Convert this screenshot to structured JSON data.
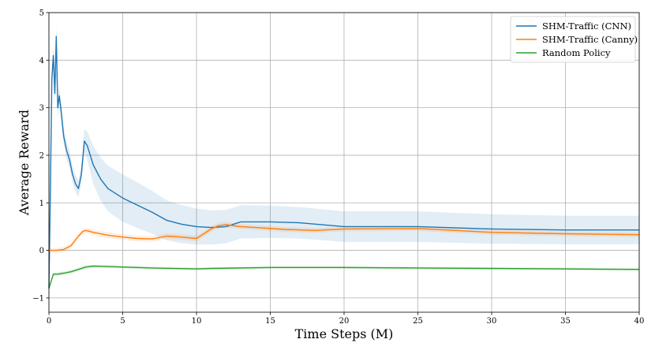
{
  "chart_data": {
    "type": "line",
    "xlabel": "Time Steps (M)",
    "ylabel": "Average Reward",
    "xlim": [
      0,
      40
    ],
    "ylim": [
      -1.3,
      5
    ],
    "xticks": [
      0,
      5,
      10,
      15,
      20,
      25,
      30,
      35,
      40
    ],
    "yticks": [
      -1,
      0,
      1,
      2,
      3,
      4,
      5
    ],
    "grid": true,
    "legend_position": "top-right",
    "series": [
      {
        "name": "SHM-Traffic (CNN)",
        "color": "#1f77b4",
        "x": [
          0,
          0.1,
          0.2,
          0.3,
          0.4,
          0.5,
          0.6,
          0.7,
          0.8,
          1.0,
          1.2,
          1.4,
          1.6,
          1.8,
          2.0,
          2.2,
          2.4,
          2.6,
          2.8,
          3.0,
          3.5,
          4.0,
          5.0,
          6.0,
          7.0,
          8.0,
          9.0,
          10.0,
          11.0,
          12.0,
          13.0,
          15.0,
          17.0,
          20.0,
          25.0,
          30.0,
          35.0,
          40.0
        ],
        "y": [
          -0.8,
          1.3,
          3.6,
          4.1,
          3.3,
          4.5,
          3.0,
          3.25,
          3.0,
          2.4,
          2.1,
          1.9,
          1.6,
          1.4,
          1.3,
          1.6,
          2.3,
          2.2,
          2.0,
          1.8,
          1.5,
          1.3,
          1.1,
          0.95,
          0.8,
          0.63,
          0.55,
          0.5,
          0.48,
          0.5,
          0.6,
          0.6,
          0.58,
          0.5,
          0.5,
          0.45,
          0.43,
          0.43
        ],
        "band": [
          0.05,
          0.2,
          0.25,
          0.25,
          0.25,
          0.25,
          0.2,
          0.2,
          0.2,
          0.18,
          0.18,
          0.18,
          0.18,
          0.18,
          0.18,
          0.2,
          0.25,
          0.3,
          0.35,
          0.4,
          0.45,
          0.48,
          0.5,
          0.48,
          0.45,
          0.42,
          0.4,
          0.38,
          0.36,
          0.35,
          0.35,
          0.34,
          0.33,
          0.32,
          0.32,
          0.31,
          0.3,
          0.3
        ]
      },
      {
        "name": "SHM-Traffic (Canny)",
        "color": "#ff7f0e",
        "x": [
          0,
          0.5,
          1.0,
          1.5,
          2.0,
          2.3,
          2.5,
          3.0,
          4.0,
          5.0,
          6.0,
          7.0,
          8.0,
          9.0,
          10.0,
          11.0,
          11.5,
          12.0,
          13.0,
          14.0,
          16.0,
          18.0,
          20.0,
          25.0,
          30.0,
          35.0,
          40.0
        ],
        "y": [
          0.0,
          0.0,
          0.02,
          0.1,
          0.3,
          0.4,
          0.42,
          0.38,
          0.32,
          0.28,
          0.25,
          0.24,
          0.3,
          0.28,
          0.25,
          0.45,
          0.52,
          0.54,
          0.5,
          0.48,
          0.44,
          0.42,
          0.45,
          0.46,
          0.38,
          0.35,
          0.33
        ],
        "band": [
          0.05,
          0.05,
          0.05,
          0.05,
          0.06,
          0.06,
          0.06,
          0.06,
          0.06,
          0.06,
          0.06,
          0.06,
          0.06,
          0.06,
          0.06,
          0.06,
          0.06,
          0.06,
          0.05,
          0.05,
          0.05,
          0.05,
          0.05,
          0.05,
          0.05,
          0.05,
          0.05
        ]
      },
      {
        "name": "Random Policy",
        "color": "#2ca02c",
        "x": [
          0,
          0.3,
          0.6,
          1.0,
          1.5,
          2.0,
          2.5,
          3.0,
          4.0,
          5.0,
          7.0,
          10.0,
          11.0,
          15.0,
          20.0,
          25.0,
          30.0,
          35.0,
          40.0
        ],
        "y": [
          -0.8,
          -0.5,
          -0.5,
          -0.48,
          -0.45,
          -0.4,
          -0.35,
          -0.33,
          -0.34,
          -0.35,
          -0.37,
          -0.39,
          -0.38,
          -0.36,
          -0.36,
          -0.37,
          -0.38,
          -0.39,
          -0.4
        ],
        "band": [
          0.05,
          0.04,
          0.04,
          0.04,
          0.04,
          0.04,
          0.04,
          0.03,
          0.03,
          0.03,
          0.03,
          0.03,
          0.03,
          0.03,
          0.03,
          0.03,
          0.03,
          0.03,
          0.03
        ]
      }
    ]
  }
}
